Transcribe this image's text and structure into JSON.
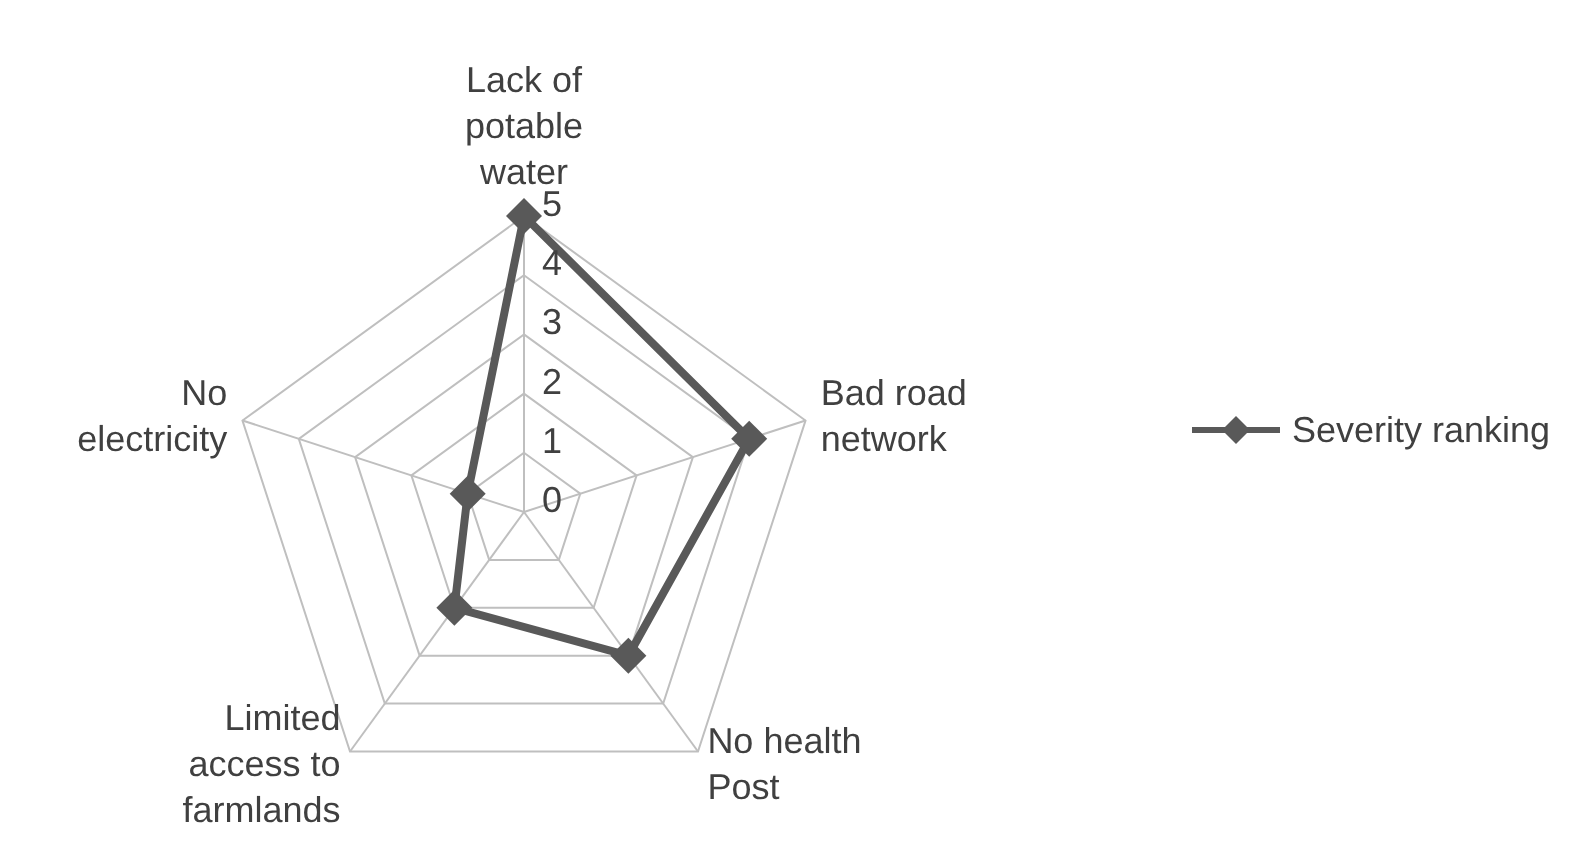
{
  "chart_data": {
    "type": "radar",
    "categories": [
      "Lack of potable water",
      "Bad road network",
      "No health Post",
      "Limited access to farmlands",
      "No electricity"
    ],
    "series": [
      {
        "name": "Severity ranking",
        "color": "#595959",
        "values": [
          5,
          4,
          3,
          2,
          1
        ]
      }
    ],
    "ylim": [
      0,
      5
    ],
    "yticks": [
      0,
      1,
      2,
      3,
      4,
      5
    ],
    "grid": true,
    "legend": "right",
    "marker": "diamond",
    "line_style": "solid"
  }
}
